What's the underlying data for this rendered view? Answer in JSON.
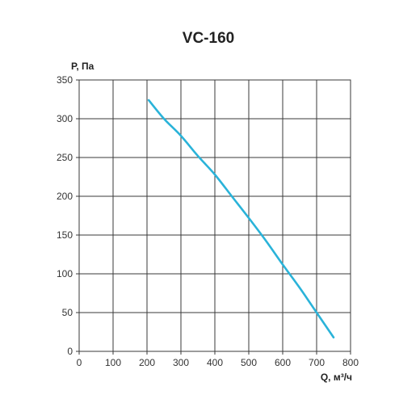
{
  "chart_data": {
    "type": "line",
    "title": "VC-160",
    "xlabel": "Q, м³/ч",
    "ylabel": "Р, Па",
    "xlim": [
      0,
      800
    ],
    "ylim": [
      0,
      350
    ],
    "x_ticks": [
      "0",
      "100",
      "200",
      "300",
      "400",
      "500",
      "600",
      "700",
      "800"
    ],
    "y_ticks": [
      "0",
      "50",
      "100",
      "150",
      "200",
      "250",
      "300",
      "350"
    ],
    "grid": true,
    "series": [
      {
        "color": "#2ab3d9",
        "x": [
          205,
          250,
          300,
          350,
          400,
          450,
          500,
          550,
          600,
          650,
          700,
          750
        ],
        "y": [
          324,
          300,
          278,
          252,
          228,
          200,
          172,
          143,
          112,
          82,
          50,
          18
        ]
      }
    ]
  }
}
